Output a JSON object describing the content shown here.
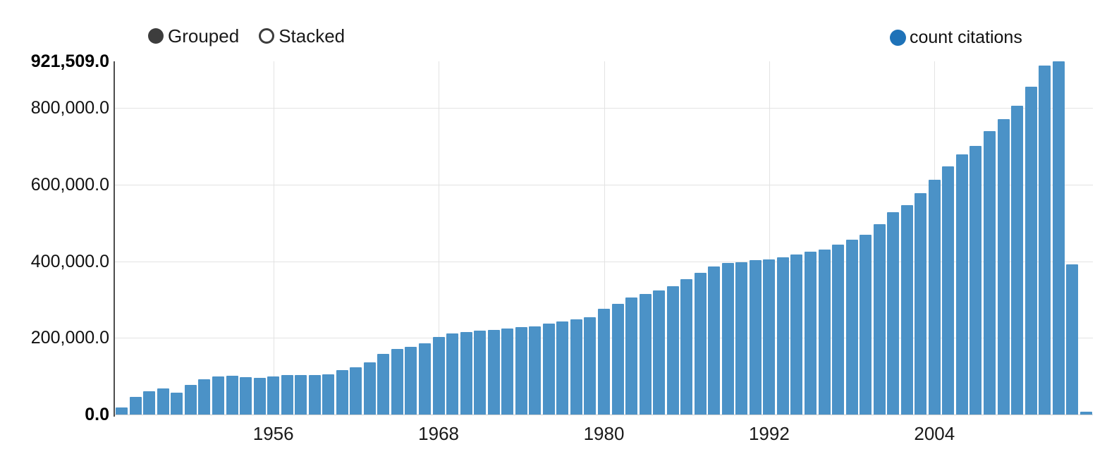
{
  "controls": {
    "grouped_label": "Grouped",
    "stacked_label": "Stacked",
    "selected": "Grouped"
  },
  "legend": {
    "label": "count citations",
    "color": "#1e72b8"
  },
  "colors": {
    "bar": "#4b92c7",
    "legend_dot": "#1e72b8",
    "axis": "#4d4d4d",
    "x_axis": "#cfcfcf",
    "gridline": "#e3e3e3",
    "text": "#1a1a1a",
    "radio": "#3d3d3d"
  },
  "chart_data": {
    "type": "bar",
    "series_name": "count citations",
    "bar_color": "#4b92c7",
    "grid": true,
    "legend_position": "top-right",
    "ylim": [
      0,
      921509
    ],
    "y_max_label": "921,509.0",
    "x": [
      1945,
      1946,
      1947,
      1948,
      1949,
      1950,
      1951,
      1952,
      1953,
      1954,
      1955,
      1956,
      1957,
      1958,
      1959,
      1960,
      1961,
      1962,
      1963,
      1964,
      1965,
      1966,
      1967,
      1968,
      1969,
      1970,
      1971,
      1972,
      1973,
      1974,
      1975,
      1976,
      1977,
      1978,
      1979,
      1980,
      1981,
      1982,
      1983,
      1984,
      1985,
      1986,
      1987,
      1988,
      1989,
      1990,
      1991,
      1992,
      1993,
      1994,
      1995,
      1996,
      1997,
      1998,
      1999,
      2000,
      2001,
      2002,
      2003,
      2004,
      2005,
      2006,
      2007,
      2008,
      2009,
      2010,
      2011,
      2012,
      2013,
      2014,
      2015
    ],
    "values": [
      19000,
      46000,
      60000,
      68000,
      57000,
      78000,
      92000,
      100000,
      102000,
      98000,
      96000,
      99000,
      104000,
      103000,
      103000,
      105000,
      116000,
      123000,
      136000,
      158000,
      171000,
      177000,
      186000,
      202000,
      211000,
      215000,
      219000,
      221000,
      224000,
      228000,
      230000,
      237000,
      243000,
      248000,
      254000,
      276000,
      289000,
      305000,
      314000,
      324000,
      335000,
      353000,
      370000,
      386000,
      395000,
      397000,
      402000,
      405000,
      410000,
      418000,
      425000,
      430000,
      443000,
      456000,
      469000,
      497000,
      528000,
      546000,
      577000,
      612000,
      647000,
      679000,
      701000,
      739000,
      771000,
      806000,
      855000,
      910000,
      921509,
      391000,
      8000
    ],
    "y_ticks": [
      {
        "value": 0,
        "label": "0.0",
        "bold": true
      },
      {
        "value": 200000,
        "label": "200,000.0",
        "bold": false
      },
      {
        "value": 400000,
        "label": "400,000.0",
        "bold": false
      },
      {
        "value": 600000,
        "label": "600,000.0",
        "bold": false
      },
      {
        "value": 800000,
        "label": "800,000.0",
        "bold": false
      },
      {
        "value": 921509,
        "label": "921,509.0",
        "bold": true
      }
    ],
    "x_ticks": [
      1956,
      1968,
      1980,
      1992,
      2004
    ]
  }
}
